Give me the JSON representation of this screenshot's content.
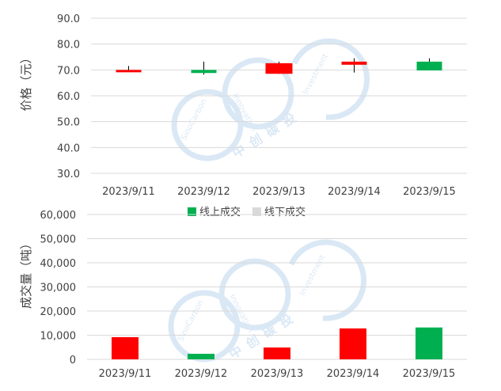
{
  "colors": {
    "up": "#FF0000",
    "down": "#00B050",
    "grid": "#D9D9D9",
    "axis_text": "#404040",
    "watermark": "#BDD7EE"
  },
  "watermark": {
    "brand_cn": "中创碳投",
    "ring_top": "Innovation",
    "ring_right": "Investment",
    "ring_left": "SinoCarbon"
  },
  "legend": {
    "online": "线上成交",
    "offline": "线下成交"
  },
  "chart_data": [
    {
      "type": "candlestick",
      "ylabel": "价格（元）",
      "ylim": [
        30,
        90
      ],
      "yticks": [
        "90.0",
        "80.0",
        "70.0",
        "60.0",
        "50.0",
        "40.0",
        "30.0"
      ],
      "ytick_values": [
        90,
        80,
        70,
        60,
        50,
        40,
        30
      ],
      "categories": [
        "2023/9/11",
        "2023/9/12",
        "2023/9/13",
        "2023/9/14",
        "2023/9/15"
      ],
      "grid": true,
      "candles": [
        {
          "open": 69.2,
          "close": 70.0,
          "high": 71.5,
          "low": 69.2,
          "color": "up"
        },
        {
          "open": 70.0,
          "close": 68.8,
          "high": 73.2,
          "low": 68.2,
          "color": "down"
        },
        {
          "open": 68.5,
          "close": 72.6,
          "high": 73.2,
          "low": 68.5,
          "color": "up"
        },
        {
          "open": 72.0,
          "close": 73.2,
          "high": 74.5,
          "low": 69.0,
          "color": "up"
        },
        {
          "open": 73.2,
          "close": 69.8,
          "high": 74.5,
          "low": 69.8,
          "color": "down"
        }
      ]
    },
    {
      "type": "bar",
      "ylabel": "成交量（吨）",
      "ylim": [
        0,
        60000
      ],
      "yticks": [
        "60,000",
        "50,000",
        "40,000",
        "30,000",
        "20,000",
        "10,000",
        "0"
      ],
      "ytick_values": [
        60000,
        50000,
        40000,
        30000,
        20000,
        10000,
        0
      ],
      "categories": [
        "2023/9/11",
        "2023/9/12",
        "2023/9/13",
        "2023/9/14",
        "2023/9/15"
      ],
      "values": [
        9200,
        2300,
        4900,
        12800,
        13200
      ],
      "bar_colors": [
        "up",
        "down",
        "up",
        "up",
        "down"
      ],
      "grid": true
    }
  ]
}
